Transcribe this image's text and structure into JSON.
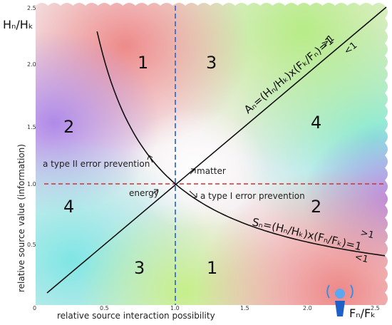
{
  "axes": {
    "x_label": "relative source interaction possibility",
    "y_label": "relative source value (information)",
    "x_ticks": [
      "0",
      "0.5",
      "1.0",
      "1.5",
      "2.0",
      "2.5"
    ],
    "y_ticks": [
      "0.5",
      "1.0",
      "1.5",
      "2.0",
      "2.5"
    ],
    "x_symbol": "Fₙ/Fₖ",
    "y_symbol": "Hₙ/Hₖ"
  },
  "equations": {
    "a": "Aₙ=(Hₙ/Hₖ)x(Fₖ/Fₙ)=1",
    "s": "Sₙ=(Hₙ/Hₖ)x(Fₙ/Fₖ)=1",
    "a_gt": ">1",
    "a_lt": "<1",
    "s_gt": ">1",
    "s_lt": "<1"
  },
  "labels": {
    "type2": "a type II error prevention",
    "type1": "a type I error prevention",
    "matter": "matter",
    "energy": "energy"
  },
  "regions": [
    "1",
    "3",
    "2",
    "4",
    "4",
    "2",
    "3",
    "1"
  ],
  "colors": {
    "red": "#ee8a8a",
    "green": "#b2ec8a",
    "cyan": "#8aeee0",
    "purple": "#b58ae8",
    "dashed_red": "#cc3333",
    "dashed_blue": "#3a6fd0",
    "icon_blue": "#1e5fc8"
  }
}
